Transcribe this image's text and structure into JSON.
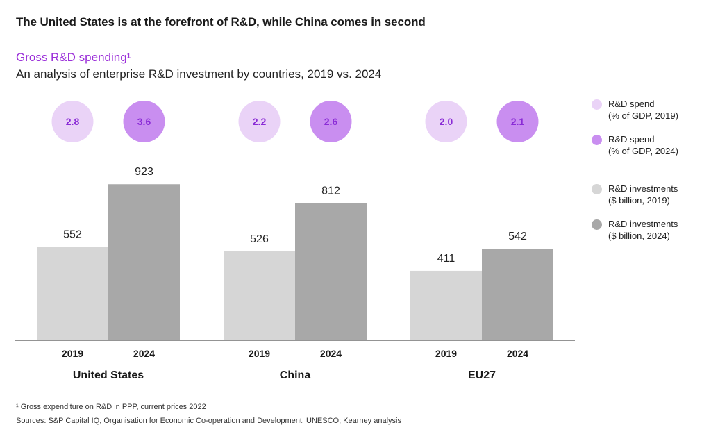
{
  "headline": "The United States is at the forefront of R&D, while China comes in second",
  "subtitle": "Gross R&D spending¹",
  "description": "An analysis of enterprise R&D investment by countries, 2019 vs. 2024",
  "colors": {
    "subtitle": "#9b30d9",
    "gdp_2019": "#ead3f7",
    "gdp_2024": "#c98ef0",
    "gdp_text": "#8a2bd6",
    "inv_2019": "#d6d6d6",
    "inv_2024": "#a8a8a8",
    "axis": "#555555"
  },
  "legend": [
    {
      "line1": "R&D spend",
      "line2": "(% of GDP, 2019)",
      "color_key": "gdp_2019"
    },
    {
      "line1": "R&D spend",
      "line2": "(% of GDP, 2024)",
      "color_key": "gdp_2024"
    },
    {
      "line1": "R&D investments",
      "line2": "($ billion, 2019)",
      "color_key": "inv_2019"
    },
    {
      "line1": "R&D investments",
      "line2": "($ billion, 2024)",
      "color_key": "inv_2024"
    }
  ],
  "chart_data": {
    "type": "bar",
    "title": "Gross R&D spending",
    "categories": [
      "United States",
      "China",
      "EU27"
    ],
    "years": [
      "2019",
      "2024"
    ],
    "series": [
      {
        "name": "R&D investments ($ billion, 2019)",
        "values": [
          552,
          526,
          411
        ]
      },
      {
        "name": "R&D investments ($ billion, 2024)",
        "values": [
          923,
          812,
          542
        ]
      }
    ],
    "gdp_share": [
      {
        "name": "R&D spend (% of GDP, 2019)",
        "values": [
          "2.8",
          "2.2",
          "2.0"
        ]
      },
      {
        "name": "R&D spend (% of GDP, 2024)",
        "values": [
          "3.6",
          "2.6",
          "2.1"
        ]
      }
    ],
    "ylim": [
      0,
      1000
    ],
    "xlabel": "",
    "ylabel": ""
  },
  "footnote": "¹ Gross expenditure on R&D in PPP, current prices 2022",
  "sources": "Sources: S&P Capital IQ, Organisation for Economic Co-operation and Development, UNESCO; Kearney analysis"
}
